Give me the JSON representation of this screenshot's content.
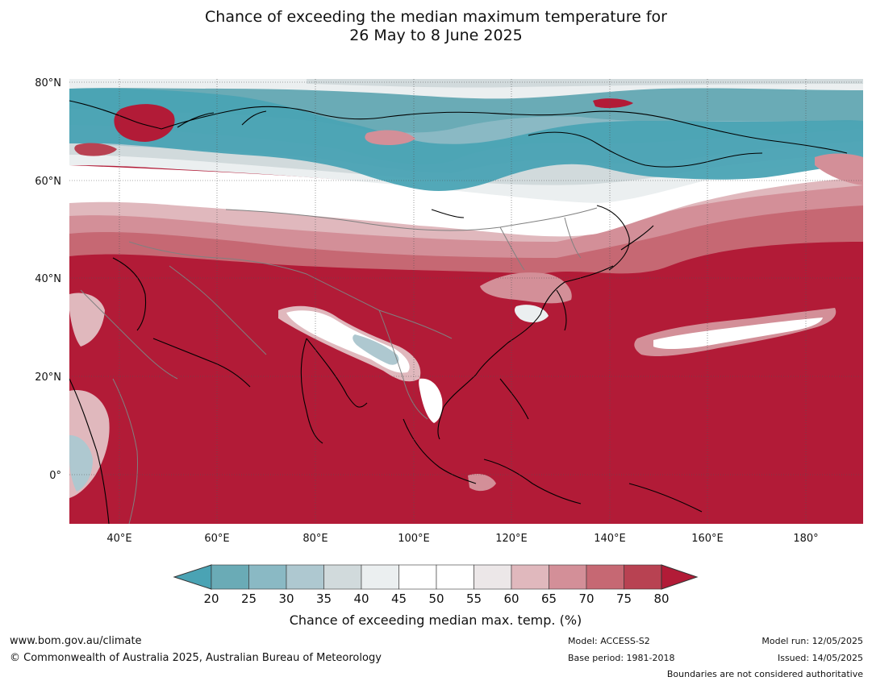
{
  "title": {
    "line1": "Chance of exceeding the median maximum temperature for",
    "line2": "26 May to 8 June 2025"
  },
  "axes": {
    "lat_labels": [
      "80°N",
      "60°N",
      "40°N",
      "20°N",
      "0°"
    ],
    "lon_labels": [
      "40°E",
      "60°E",
      "80°E",
      "100°E",
      "120°E",
      "140°E",
      "160°E",
      "180°"
    ]
  },
  "colors": {
    "below_20": "#4aa3b4",
    "20_25": "#6aabb6",
    "25_30": "#8ab9c4",
    "30_35": "#aec8d0",
    "35_40": "#d1dadc",
    "40_45": "#ebeff0",
    "45_55": "#ffffff",
    "55_60": "#ece7e8",
    "60_65": "#e0b8bd",
    "65_70": "#d38f98",
    "70_75": "#c66873",
    "75_80": "#b84252",
    "above_80": "#b21b37",
    "coastline": "#000000",
    "borders": "#808080"
  },
  "colorbar": {
    "ticks": [
      "20",
      "25",
      "30",
      "35",
      "40",
      "45",
      "50",
      "55",
      "60",
      "65",
      "70",
      "75",
      "80"
    ],
    "label": "Chance of exceeding median max. temp. (%)"
  },
  "footer": {
    "website": "www.bom.gov.au/climate",
    "copyright": "© Commonwealth of Australia 2025, Australian Bureau of Meteorology",
    "model": "Model: ACCESS-S2",
    "base_period": "Base period: 1981-2018",
    "model_run": "Model run: 12/05/2025",
    "issued": "Issued: 14/05/2025",
    "disclaimer": "Boundaries are not considered authoritative"
  }
}
